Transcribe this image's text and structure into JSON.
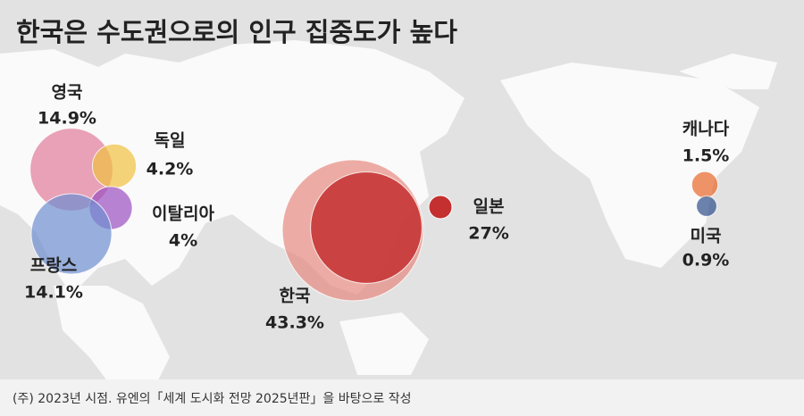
{
  "chart_data": {
    "type": "bubble-map",
    "title": "한국은 수도권으로의 인구 집중도가 높다",
    "categories": [
      "영국",
      "독일",
      "이탈리아",
      "프랑스",
      "한국",
      "일본",
      "캐나다",
      "미국"
    ],
    "values": [
      14.9,
      4.2,
      4,
      14.1,
      43.3,
      27,
      1.5,
      0.9
    ],
    "value_labels": [
      "14.9%",
      "4.2%",
      "4%",
      "14.1%",
      "43.3%",
      "27%",
      "1.5%",
      "0.9%"
    ],
    "colors": [
      "#e07a9a",
      "#f0c040",
      "#9b4fc0",
      "#6d8fd0",
      "#e58a80",
      "#c43030",
      "#e8662a",
      "#2d4f8a"
    ],
    "footnote": "(주) 2023년 시점. 유엔의「세계 도시화 전망 2025년판」을 바탕으로 작성"
  }
}
